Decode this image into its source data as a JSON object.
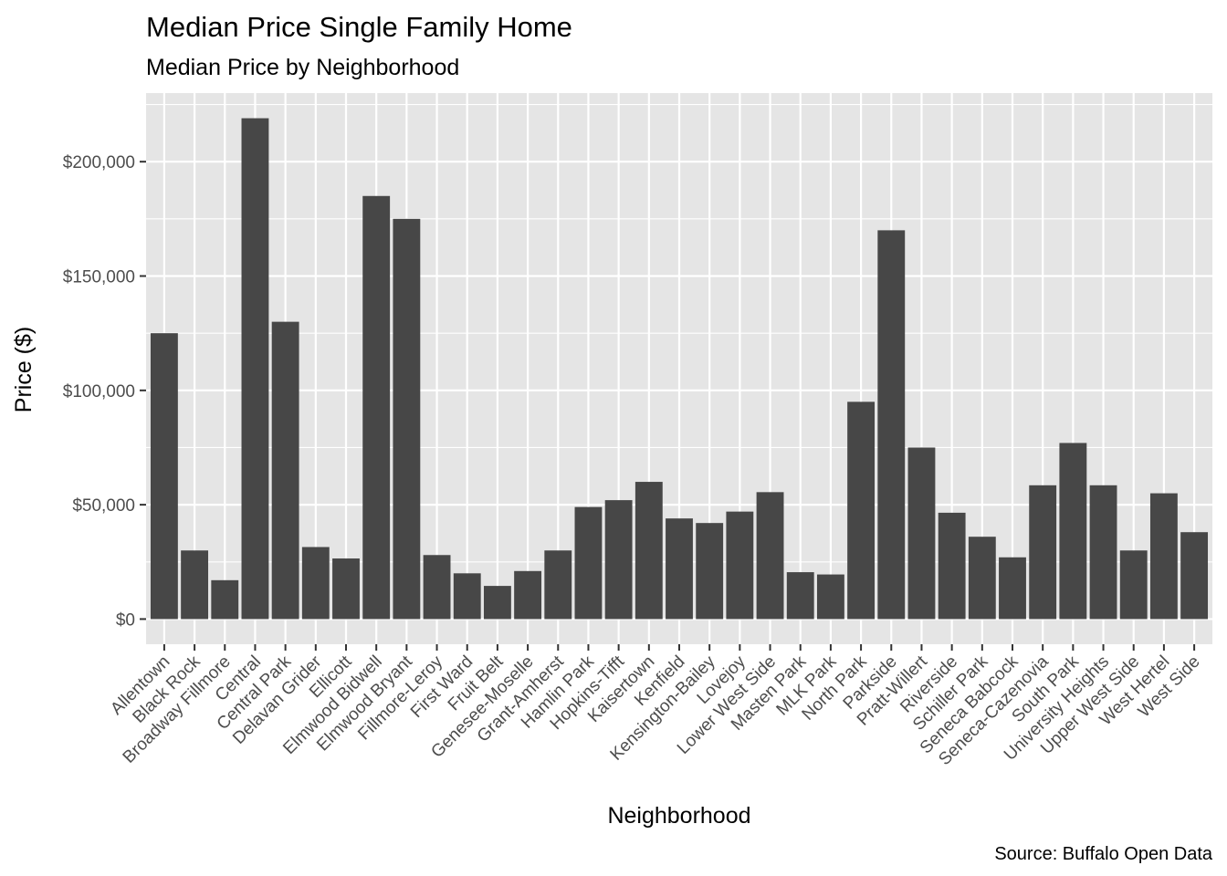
{
  "chart_data": {
    "type": "bar",
    "title": "Median Price Single Family Home",
    "subtitle": "Median Price by Neighborhood",
    "xlabel": "Neighborhood",
    "ylabel": "Price ($)",
    "caption": "Source: Buffalo Open Data",
    "categories": [
      "Allentown",
      "Black Rock",
      "Broadway Fillmore",
      "Central",
      "Central Park",
      "Delavan Grider",
      "Ellicott",
      "Elmwood Bidwell",
      "Elmwood Bryant",
      "Fillmore-Leroy",
      "First Ward",
      "Fruit Belt",
      "Genesee-Moselle",
      "Grant-Amherst",
      "Hamlin Park",
      "Hopkins-Tifft",
      "Kaisertown",
      "Kenfield",
      "Kensington-Bailey",
      "Lovejoy",
      "Lower West Side",
      "Masten Park",
      "MLK Park",
      "North Park",
      "Parkside",
      "Pratt-Willert",
      "Riverside",
      "Schiller Park",
      "Seneca Babcock",
      "Seneca-Cazenovia",
      "South Park",
      "University Heights",
      "Upper West Side",
      "West Hertel",
      "West Side"
    ],
    "values": [
      125000,
      30000,
      17000,
      219000,
      130000,
      31500,
      26500,
      185000,
      175000,
      28000,
      20000,
      14500,
      21000,
      30000,
      49000,
      52000,
      60000,
      44000,
      42000,
      47000,
      55500,
      20500,
      19500,
      95000,
      170000,
      75000,
      46500,
      36000,
      27000,
      58500,
      77000,
      58500,
      30000,
      55000,
      38000
    ],
    "ylim": [
      -11000,
      230000
    ],
    "yticks": [
      0,
      50000,
      100000,
      150000,
      200000
    ],
    "ytick_labels": [
      "$0",
      "$50,000",
      "$100,000",
      "$150,000",
      "$200,000"
    ],
    "grid": true,
    "bar_color": "#474747",
    "panel_color": "#e5e5e5",
    "grid_color": "#ffffff"
  }
}
